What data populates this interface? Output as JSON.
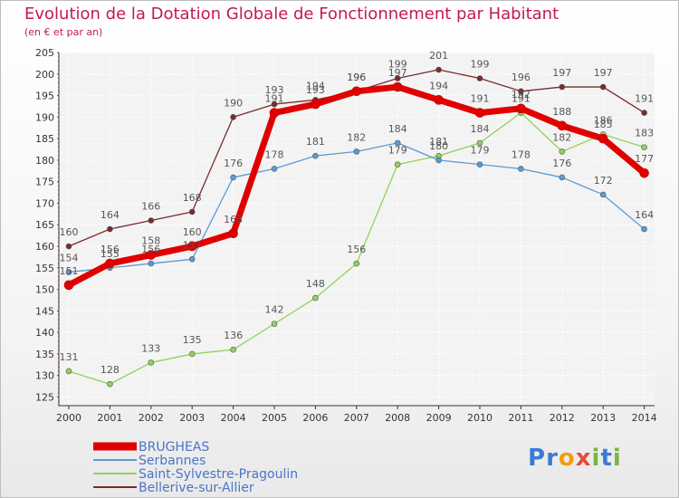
{
  "chart_data": {
    "type": "line",
    "title": "Evolution de la Dotation Globale de Fonctionnement par Habitant",
    "subtitle": "(en € et par an)",
    "x": [
      "2000",
      "2001",
      "2002",
      "2003",
      "2004",
      "2005",
      "2006",
      "2007",
      "2008",
      "2009",
      "2010",
      "2011",
      "2012",
      "2013",
      "2014"
    ],
    "ylim": [
      123,
      205
    ],
    "yticks": [
      125,
      130,
      135,
      140,
      145,
      150,
      155,
      160,
      165,
      170,
      175,
      180,
      185,
      190,
      195,
      200,
      205
    ],
    "grid": true,
    "legend_position": "bottom-left",
    "series": [
      {
        "name": "BRUGHEAS",
        "color": "#e00000",
        "values": [
          151,
          156,
          158,
          160,
          163,
          191,
          193,
          196,
          197,
          194,
          191,
          192,
          188,
          185,
          177
        ]
      },
      {
        "name": "Serbannes",
        "color": "#5b9bd5",
        "values": [
          154,
          155,
          156,
          157,
          176,
          178,
          181,
          182,
          184,
          180,
          179,
          178,
          176,
          172,
          164
        ]
      },
      {
        "name": "Saint-Sylvestre-Pragoulin",
        "color": "#8fd35a",
        "values": [
          131,
          128,
          133,
          135,
          136,
          142,
          148,
          156,
          179,
          181,
          184,
          191,
          182,
          186,
          183
        ]
      },
      {
        "name": "Bellerive-sur-Allier",
        "color": "#7b2a2a",
        "values": [
          160,
          164,
          166,
          168,
          190,
          193,
          194,
          196,
          199,
          201,
          199,
          196,
          197,
          197,
          191
        ]
      }
    ]
  },
  "logo": {
    "text": "Proxiti",
    "letters": [
      "P",
      "r",
      "o",
      "x",
      "i",
      "t",
      "i"
    ],
    "colors": [
      "#3a7bd5",
      "#3a7bd5",
      "#f39c12",
      "#e74c3c",
      "#7cb342",
      "#3a7bd5",
      "#7cb342"
    ]
  }
}
